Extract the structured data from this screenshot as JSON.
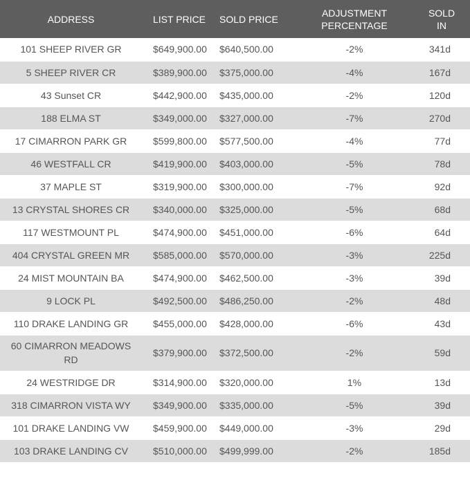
{
  "headers": {
    "address": "ADDRESS",
    "list_price": "LIST PRICE",
    "sold_price": "SOLD PRICE",
    "adjustment_line1": "ADJUSTMENT",
    "adjustment_line2": "PERCENTAGE",
    "sold_in_line1": "SOLD",
    "sold_in_line2": "IN"
  },
  "rows": [
    {
      "address": "101 SHEEP RIVER GR",
      "list": "$649,900.00",
      "sold": "$640,500.00",
      "adj": "-2%",
      "days": "341d"
    },
    {
      "address": "5 SHEEP RIVER CR",
      "list": "$389,900.00",
      "sold": "$375,000.00",
      "adj": "-4%",
      "days": "167d"
    },
    {
      "address": "43 Sunset CR",
      "list": "$442,900.00",
      "sold": "$435,000.00",
      "adj": "-2%",
      "days": "120d"
    },
    {
      "address": "188 ELMA ST",
      "list": "$349,000.00",
      "sold": "$327,000.00",
      "adj": "-7%",
      "days": "270d"
    },
    {
      "address": "17 CIMARRON PARK GR",
      "list": "$599,800.00",
      "sold": "$577,500.00",
      "adj": "-4%",
      "days": "77d"
    },
    {
      "address": "46 WESTFALL CR",
      "list": "$419,900.00",
      "sold": "$403,000.00",
      "adj": "-5%",
      "days": "78d"
    },
    {
      "address": "37 MAPLE ST",
      "list": "$319,900.00",
      "sold": "$300,000.00",
      "adj": "-7%",
      "days": "92d"
    },
    {
      "address": "13 CRYSTAL SHORES CR",
      "list": "$340,000.00",
      "sold": "$325,000.00",
      "adj": "-5%",
      "days": "68d"
    },
    {
      "address": "117 WESTMOUNT PL",
      "list": "$474,900.00",
      "sold": "$451,000.00",
      "adj": "-6%",
      "days": "64d"
    },
    {
      "address": "404 CRYSTAL GREEN MR",
      "list": "$585,000.00",
      "sold": "$570,000.00",
      "adj": "-3%",
      "days": "225d"
    },
    {
      "address": "24 MIST MOUNTAIN BA",
      "list": "$474,900.00",
      "sold": "$462,500.00",
      "adj": "-3%",
      "days": "39d"
    },
    {
      "address": "9 LOCK PL",
      "list": "$492,500.00",
      "sold": "$486,250.00",
      "adj": "-2%",
      "days": "48d"
    },
    {
      "address": "110 DRAKE LANDING GR",
      "list": "$455,000.00",
      "sold": "$428,000.00",
      "adj": "-6%",
      "days": "43d"
    },
    {
      "address": "60 CIMARRON MEADOWS RD",
      "list": "$379,900.00",
      "sold": "$372,500.00",
      "adj": "-2%",
      "days": "59d"
    },
    {
      "address": "24 WESTRIDGE DR",
      "list": "$314,900.00",
      "sold": "$320,000.00",
      "adj": "1%",
      "days": "13d"
    },
    {
      "address": "318 CIMARRON VISTA WY",
      "list": "$349,900.00",
      "sold": "$335,000.00",
      "adj": "-5%",
      "days": "39d"
    },
    {
      "address": "101 DRAKE LANDING VW",
      "list": "$459,900.00",
      "sold": "$449,000.00",
      "adj": "-3%",
      "days": "29d"
    },
    {
      "address": "103 DRAKE LANDING CV",
      "list": "$510,000.00",
      "sold": "$499,999.00",
      "adj": "-2%",
      "days": "185d"
    }
  ]
}
